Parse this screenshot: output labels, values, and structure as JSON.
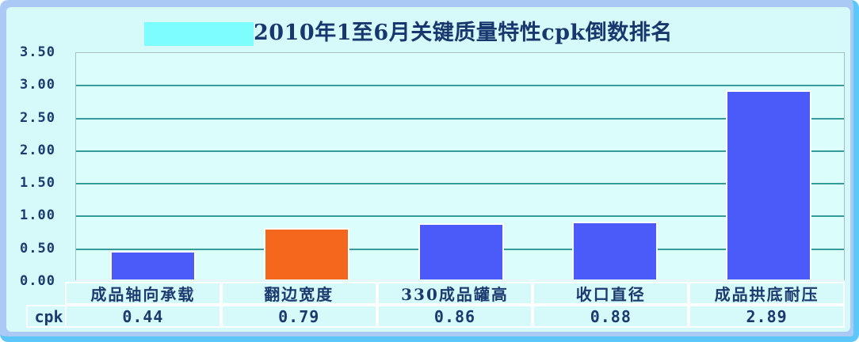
{
  "chart_data": {
    "type": "bar",
    "title": "2010年1至6月关键质量特性cpk倒数排名",
    "categories": [
      "成品轴向承载",
      "翻边宽度",
      "330成品罐高",
      "收口直径",
      "成品拱底耐压"
    ],
    "series": [
      {
        "name": "cpk",
        "values": [
          0.44,
          0.79,
          0.86,
          0.88,
          2.89
        ]
      }
    ],
    "bar_colors": [
      "#4a5bfa",
      "#f4671d",
      "#4a5bfa",
      "#4a5bfa",
      "#4a5bfa"
    ],
    "ylabel": "",
    "xlabel": "",
    "ylim": [
      0,
      3.5
    ],
    "ytick_step": 0.5,
    "yticks": [
      "3.50",
      "3.00",
      "2.50",
      "2.00",
      "1.50",
      "1.00",
      "0.50",
      "0.00"
    ],
    "grid": true,
    "legend_position": "none",
    "data_table": {
      "row_label": "cpk",
      "row_values": [
        "0.44",
        "0.79",
        "0.86",
        "0.88",
        "2.89"
      ]
    }
  },
  "colors": {
    "bar_blue": "#4a5bfa",
    "bar_orange": "#f4671d",
    "gridline_teal": "#359c9c",
    "text_navy": "#1b3a70",
    "frame_periwinkle": "#aacaf5",
    "frame_accent_blue": "#5ec7fa",
    "panel_bg": "#d6faf9",
    "plot_bg": "#dbfdfc",
    "title_highlight_cyan": "#7dfdfe",
    "cell_border": "#ffffff"
  }
}
